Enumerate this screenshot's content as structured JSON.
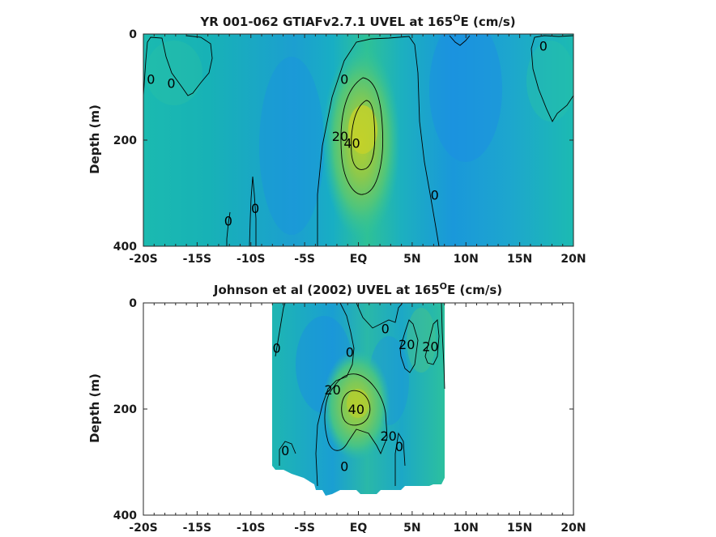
{
  "chart_data": [
    {
      "type": "heatmap",
      "title": "YR 001-062 GTIAFv2.7.1 UVEL at 165",
      "title_sup": "O",
      "title_tail": "E (cm/s)",
      "ylabel": "Depth (m)",
      "x_ticks": [
        "-20S",
        "-15S",
        "-10S",
        "-5S",
        "EQ",
        "5N",
        "10N",
        "15N",
        "20N"
      ],
      "x_tick_values": [
        -20,
        -15,
        -10,
        -5,
        0,
        5,
        10,
        15,
        20
      ],
      "y_ticks": [
        "0",
        "200",
        "400"
      ],
      "y_tick_values": [
        0,
        200,
        400
      ],
      "xlim": [
        -20,
        20
      ],
      "ylim": [
        0,
        400
      ],
      "y_reversed": true,
      "jet_core": {
        "lat": 0.5,
        "depth": 180,
        "max_value": 40
      },
      "contour_labels": [
        {
          "text": "0",
          "lat": -19.3,
          "depth": 85
        },
        {
          "text": "0",
          "lat": -17.4,
          "depth": 92
        },
        {
          "text": "0",
          "lat": -1.3,
          "depth": 85
        },
        {
          "text": "20",
          "lat": -1.7,
          "depth": 192
        },
        {
          "text": "40",
          "lat": -0.6,
          "depth": 205
        },
        {
          "text": "0",
          "lat": 7.1,
          "depth": 303
        },
        {
          "text": "0",
          "lat": 17.2,
          "depth": 22
        },
        {
          "text": "0",
          "lat": -12.1,
          "depth": 352
        },
        {
          "text": "0",
          "lat": -9.6,
          "depth": 328
        }
      ]
    },
    {
      "type": "heatmap",
      "title": "Johnson et al (2002) UVEL at 165",
      "title_sup": "O",
      "title_tail": "E (cm/s)",
      "ylabel": "Depth (m)",
      "x_ticks": [
        "-20S",
        "-15S",
        "-10S",
        "-5S",
        "EQ",
        "5N",
        "10N",
        "15N",
        "20N"
      ],
      "x_tick_values": [
        -20,
        -15,
        -10,
        -5,
        0,
        5,
        10,
        15,
        20
      ],
      "y_ticks": [
        "0",
        "200",
        "400"
      ],
      "y_tick_values": [
        0,
        200,
        400
      ],
      "xlim": [
        -20,
        20
      ],
      "ylim": [
        0,
        400
      ],
      "y_reversed": true,
      "data_extent": {
        "lat_min": -8,
        "lat_max": 8
      },
      "jet_core": {
        "lat": 0,
        "depth": 200,
        "max_value": 40
      },
      "contour_labels": [
        {
          "text": "0",
          "lat": -7.6,
          "depth": 85
        },
        {
          "text": "0",
          "lat": -0.8,
          "depth": 92
        },
        {
          "text": "0",
          "lat": 2.5,
          "depth": 48
        },
        {
          "text": "20",
          "lat": 4.5,
          "depth": 78
        },
        {
          "text": "20",
          "lat": 6.7,
          "depth": 82
        },
        {
          "text": "20",
          "lat": -2.4,
          "depth": 163
        },
        {
          "text": "40",
          "lat": -0.2,
          "depth": 200
        },
        {
          "text": "0",
          "lat": -6.8,
          "depth": 278
        },
        {
          "text": "20",
          "lat": 2.8,
          "depth": 250
        },
        {
          "text": "0",
          "lat": 3.8,
          "depth": 270
        },
        {
          "text": "0",
          "lat": -1.3,
          "depth": 308
        }
      ]
    }
  ]
}
